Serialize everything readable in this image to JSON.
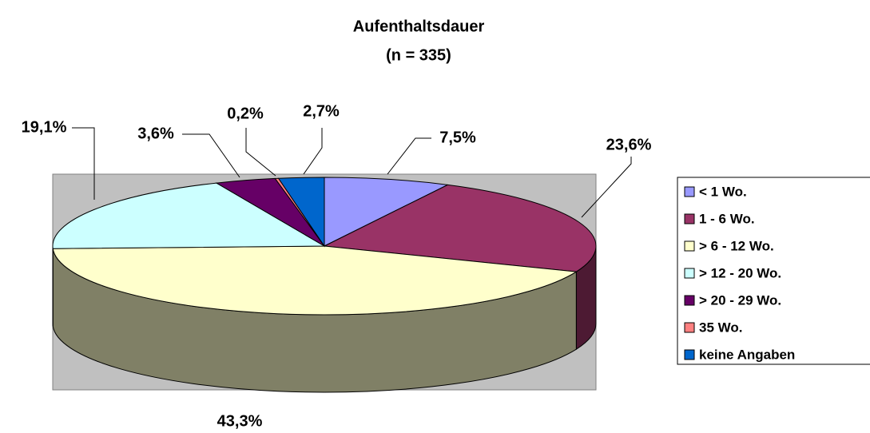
{
  "chart_data": {
    "type": "pie3d",
    "title": "Aufenthaltsdauer",
    "subtitle": "(n = 335)",
    "categories": [
      "< 1 Wo.",
      "1 - 6 Wo.",
      "> 6 - 12 Wo.",
      "> 12 - 20 Wo.",
      "> 20 - 29 Wo.",
      "35 Wo.",
      "keine Angaben"
    ],
    "values": [
      7.5,
      23.6,
      43.3,
      19.1,
      3.6,
      0.2,
      2.7
    ],
    "value_labels": [
      "7,5%",
      "23,6%",
      "43,3%",
      "19,1%",
      "3,6%",
      "0,2%",
      "2,7%"
    ],
    "colors": [
      "#9999ff",
      "#993366",
      "#ffffcc",
      "#ccffff",
      "#660066",
      "#ff8080",
      "#0066cc"
    ],
    "legend": "right"
  }
}
